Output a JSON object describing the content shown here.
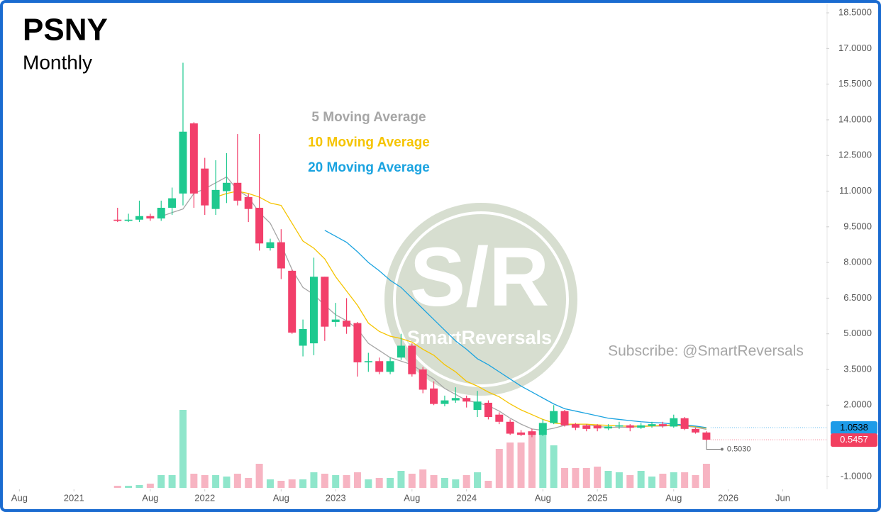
{
  "chart_data": {
    "type": "candlestick",
    "title": "PSNY",
    "subtitle": "Monthly",
    "x": [
      "2021-05",
      "2021-06",
      "2021-07",
      "2021-08",
      "2021-09",
      "2021-10",
      "2021-11",
      "2021-12",
      "2022-01",
      "2022-02",
      "2022-03",
      "2022-04",
      "2022-05",
      "2022-06",
      "2022-07",
      "2022-08",
      "2022-09",
      "2022-10",
      "2022-11",
      "2022-12",
      "2023-01",
      "2023-02",
      "2023-03",
      "2023-04",
      "2023-05",
      "2023-06",
      "2023-07",
      "2023-08",
      "2023-09",
      "2023-10",
      "2023-11",
      "2023-12",
      "2024-01",
      "2024-02",
      "2024-03",
      "2024-04",
      "2024-05",
      "2024-06",
      "2024-07",
      "2024-08",
      "2024-09",
      "2024-10",
      "2024-11",
      "2024-12",
      "2025-01",
      "2025-02",
      "2025-03",
      "2025-04",
      "2025-05",
      "2025-06",
      "2025-07",
      "2025-08",
      "2025-09",
      "2025-10",
      "2025-11"
    ],
    "open": [
      9.8,
      9.75,
      9.8,
      9.95,
      9.85,
      10.3,
      10.9,
      13.85,
      11.95,
      10.25,
      11.0,
      11.35,
      10.75,
      10.3,
      8.6,
      8.85,
      7.65,
      4.5,
      4.6,
      7.4,
      5.5,
      5.55,
      5.45,
      3.8,
      3.85,
      3.4,
      4.0,
      4.5,
      3.5,
      2.7,
      2.05,
      2.2,
      2.3,
      1.8,
      2.1,
      1.6,
      1.3,
      0.85,
      0.9,
      0.75,
      1.25,
      1.75,
      1.2,
      1.15,
      1.15,
      1.02,
      1.1,
      1.15,
      1.05,
      1.12,
      1.2,
      1.1,
      1.45,
      1.0,
      0.85
    ],
    "high": [
      10.3,
      10.05,
      10.6,
      10.05,
      10.6,
      11.15,
      16.4,
      13.9,
      12.4,
      12.3,
      12.6,
      13.4,
      10.9,
      13.4,
      9.0,
      9.4,
      7.7,
      5.6,
      8.2,
      7.4,
      6.3,
      6.5,
      5.5,
      4.2,
      4.0,
      4.0,
      5.0,
      4.6,
      3.6,
      3.0,
      2.4,
      2.75,
      2.4,
      2.6,
      2.2,
      1.7,
      1.4,
      0.95,
      1.0,
      1.4,
      2.0,
      1.8,
      1.25,
      1.2,
      1.2,
      1.2,
      1.3,
      1.2,
      1.25,
      1.3,
      1.3,
      1.6,
      1.5,
      1.05,
      0.9
    ],
    "low": [
      9.7,
      9.7,
      9.7,
      9.75,
      9.75,
      10.0,
      10.4,
      10.3,
      10.0,
      10.0,
      10.5,
      10.4,
      9.7,
      8.5,
      8.5,
      7.3,
      5.0,
      4.05,
      4.1,
      4.7,
      5.3,
      5.0,
      3.2,
      3.4,
      3.3,
      3.3,
      3.9,
      3.2,
      2.5,
      2.0,
      1.95,
      2.1,
      1.9,
      1.5,
      1.4,
      1.2,
      0.75,
      0.7,
      0.65,
      0.7,
      1.2,
      1.1,
      0.95,
      0.9,
      0.9,
      0.95,
      1.0,
      0.9,
      1.0,
      1.05,
      1.05,
      1.05,
      0.95,
      0.8,
      0.503
    ],
    "close": [
      9.75,
      9.8,
      9.95,
      9.85,
      10.3,
      10.7,
      13.5,
      10.9,
      10.4,
      11.05,
      11.35,
      10.6,
      10.25,
      8.8,
      8.85,
      7.75,
      5.05,
      5.2,
      7.4,
      5.3,
      5.6,
      5.3,
      3.8,
      3.85,
      3.4,
      3.85,
      4.5,
      3.3,
      2.65,
      2.05,
      2.2,
      2.3,
      2.15,
      2.15,
      1.5,
      1.3,
      0.8,
      0.75,
      0.75,
      1.25,
      1.75,
      1.15,
      1.05,
      1.0,
      1.02,
      1.1,
      1.15,
      1.05,
      1.15,
      1.2,
      1.12,
      1.45,
      1.0,
      0.85,
      0.5457
    ],
    "volume": [
      3,
      3,
      4,
      6,
      18,
      18,
      110,
      20,
      18,
      18,
      16,
      20,
      14,
      34,
      12,
      10,
      12,
      12,
      22,
      20,
      18,
      18,
      22,
      12,
      14,
      14,
      24,
      20,
      26,
      18,
      14,
      12,
      18,
      22,
      10,
      55,
      64,
      64,
      78,
      90,
      60,
      28,
      28,
      28,
      30,
      24,
      22,
      18,
      24,
      16,
      20,
      22,
      22,
      18,
      34
    ],
    "up_color": "#1ec98f",
    "down_color": "#f23f6a",
    "volume_up_color": "#8fe6cb",
    "volume_down_color": "#f7b4c2",
    "series": [
      {
        "name": "5 Moving Average",
        "color": "#a6a6a6",
        "values": [
          null,
          null,
          null,
          null,
          9.94,
          10.1,
          10.25,
          10.9,
          11.1,
          11.35,
          11.6,
          11.05,
          10.75,
          10.1,
          9.65,
          8.75,
          7.7,
          6.95,
          6.65,
          6.2,
          5.8,
          5.55,
          5.2,
          4.6,
          4.3,
          4.0,
          3.85,
          3.7,
          3.4,
          3.1,
          2.7,
          2.45,
          2.2,
          2.1,
          1.98,
          1.75,
          1.45,
          1.2,
          1.0,
          0.94,
          1.03,
          1.15,
          1.2,
          1.2,
          1.1,
          1.07,
          1.07,
          1.07,
          1.1,
          1.12,
          1.12,
          1.15,
          1.12,
          1.07,
          0.98
        ]
      },
      {
        "name": "10 Moving Average",
        "color": "#f5c400",
        "values": [
          null,
          null,
          null,
          null,
          null,
          null,
          null,
          null,
          null,
          10.75,
          10.9,
          11.0,
          10.9,
          10.75,
          10.5,
          10.4,
          9.65,
          8.9,
          8.6,
          8.15,
          7.4,
          6.8,
          6.2,
          5.45,
          5.1,
          4.9,
          4.8,
          4.65,
          4.35,
          4.1,
          3.7,
          3.4,
          3.0,
          2.8,
          2.55,
          2.35,
          2.05,
          1.8,
          1.6,
          1.4,
          1.25,
          1.2,
          1.2,
          1.2,
          1.17,
          1.15,
          1.12,
          1.12,
          1.12,
          1.12,
          1.15,
          1.17,
          1.15,
          1.1,
          1.03
        ]
      },
      {
        "name": "20 Moving Average",
        "color": "#1aa3e0",
        "values": [
          null,
          null,
          null,
          null,
          null,
          null,
          null,
          null,
          null,
          null,
          null,
          null,
          null,
          null,
          null,
          null,
          null,
          null,
          null,
          9.35,
          9.1,
          8.85,
          8.45,
          8.0,
          7.65,
          7.25,
          6.95,
          6.5,
          6.05,
          5.6,
          5.15,
          4.7,
          4.35,
          3.95,
          3.7,
          3.4,
          3.1,
          2.8,
          2.55,
          2.3,
          2.05,
          1.85,
          1.75,
          1.65,
          1.55,
          1.45,
          1.4,
          1.35,
          1.3,
          1.27,
          1.25,
          1.2,
          1.17,
          1.12,
          1.0538
        ]
      }
    ],
    "price_tags": [
      1.0538,
      0.5457
    ],
    "price_tag_colors": [
      "#1e9be8",
      "#f23f5f"
    ],
    "low_marker": {
      "value": 0.503,
      "label": "0.5030"
    },
    "xlim": [
      "2020-07",
      "2026-10"
    ],
    "xticks": [
      {
        "value": "2020-08",
        "label": "Aug"
      },
      {
        "value": "2021-01",
        "label": "2021"
      },
      {
        "value": "2021-08",
        "label": "Aug"
      },
      {
        "value": "2022-01",
        "label": "2022"
      },
      {
        "value": "2022-08",
        "label": "Aug"
      },
      {
        "value": "2023-01",
        "label": "2023"
      },
      {
        "value": "2023-08",
        "label": "Aug"
      },
      {
        "value": "2024-01",
        "label": "2024"
      },
      {
        "value": "2024-08",
        "label": "Aug"
      },
      {
        "value": "2025-01",
        "label": "2025"
      },
      {
        "value": "2025-08",
        "label": "Aug"
      },
      {
        "value": "2026-01",
        "label": "2026"
      },
      {
        "value": "2026-06",
        "label": "Jun"
      }
    ],
    "ylim": [
      -1.54,
      18.8
    ],
    "yticks": [
      {
        "value": 18.5,
        "label": "18.5000"
      },
      {
        "value": 17,
        "label": "17.0000"
      },
      {
        "value": 15.5,
        "label": "15.5000"
      },
      {
        "value": 14,
        "label": "14.0000"
      },
      {
        "value": 12.5,
        "label": "12.5000"
      },
      {
        "value": 11,
        "label": "11.0000"
      },
      {
        "value": 9.5,
        "label": "9.5000"
      },
      {
        "value": 8,
        "label": "8.0000"
      },
      {
        "value": 6.5,
        "label": "6.5000"
      },
      {
        "value": 5,
        "label": "5.0000"
      },
      {
        "value": 3.5,
        "label": "3.5000"
      },
      {
        "value": 2,
        "label": "2.0000"
      },
      {
        "value": -1,
        "label": "-1.0000"
      }
    ],
    "grid": false,
    "annotation": "Subscribe: @SmartReversals",
    "watermark": {
      "logo": "S/R",
      "name": "SmartReversals"
    }
  }
}
